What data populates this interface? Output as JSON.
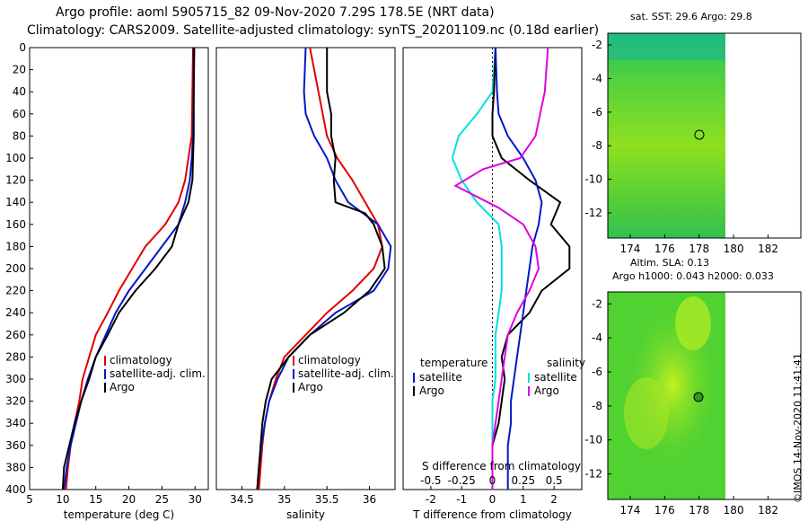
{
  "header": {
    "line1": "Argo profile: aoml 5905715_82 09-Nov-2020 7.29S 178.5E (NRT data)",
    "line2": "Climatology: CARS2009. Satellite-adjusted climatology: synTS_20201109.nc (0.18d earlier)"
  },
  "map_top": {
    "title": "sat. SST: 29.6 Argo: 29.8",
    "xticks": [
      "174",
      "176",
      "178",
      "180",
      "182"
    ],
    "yticks": [
      "-2",
      "-4",
      "-6",
      "-8",
      "-10",
      "-12"
    ]
  },
  "map_bottom": {
    "title1": "Altim. SLA: 0.13",
    "title2": "Argo h1000: 0.043 h2000: 0.033",
    "xticks": [
      "174",
      "176",
      "178",
      "180",
      "182"
    ],
    "yticks": [
      "-2",
      "-4",
      "-6",
      "-8",
      "-10",
      "-12"
    ]
  },
  "credit": "©IMOS 14-Nov-2020 11:41:41",
  "colors": {
    "climatology": "#e00000",
    "satellite": "#0018c8",
    "argo": "#000000",
    "temp_diff": "#00e0e0",
    "sal_diff": "#e000e0"
  },
  "chart_data": [
    {
      "type": "line",
      "xlabel": "temperature (deg C)",
      "ylabel": "",
      "xlim": [
        5,
        32
      ],
      "ylim": [
        400,
        0
      ],
      "xticks": [
        "5",
        "10",
        "15",
        "20",
        "25",
        "30"
      ],
      "xtick_values": [
        5,
        10,
        15,
        20,
        25,
        30
      ],
      "yticks": [
        "0",
        "20",
        "40",
        "60",
        "80",
        "100",
        "120",
        "140",
        "160",
        "180",
        "200",
        "220",
        "240",
        "260",
        "280",
        "300",
        "320",
        "340",
        "360",
        "380",
        "400"
      ],
      "ytick_values": [
        0,
        20,
        40,
        60,
        80,
        100,
        120,
        140,
        160,
        180,
        200,
        220,
        240,
        260,
        280,
        300,
        320,
        340,
        360,
        380,
        400
      ],
      "legend": [
        "climatology",
        "satellite-adj. clim.",
        "Argo"
      ],
      "series": [
        {
          "name": "climatology",
          "color": "#e00000",
          "points": [
            [
              29.7,
              0
            ],
            [
              29.6,
              40
            ],
            [
              29.5,
              80
            ],
            [
              29.0,
              100
            ],
            [
              28.5,
              120
            ],
            [
              27.5,
              140
            ],
            [
              25.5,
              160
            ],
            [
              22.5,
              180
            ],
            [
              20.5,
              200
            ],
            [
              18.5,
              220
            ],
            [
              16.8,
              240
            ],
            [
              15.0,
              260
            ],
            [
              14.0,
              280
            ],
            [
              13.0,
              300
            ],
            [
              12.5,
              320
            ],
            [
              11.8,
              340
            ],
            [
              11.2,
              360
            ],
            [
              10.8,
              380
            ],
            [
              10.5,
              400
            ]
          ]
        },
        {
          "name": "satellite-adj. clim.",
          "color": "#0018c8",
          "points": [
            [
              29.9,
              0
            ],
            [
              29.8,
              40
            ],
            [
              29.7,
              80
            ],
            [
              29.5,
              100
            ],
            [
              29.2,
              120
            ],
            [
              28.5,
              140
            ],
            [
              27.5,
              160
            ],
            [
              25.0,
              180
            ],
            [
              22.5,
              200
            ],
            [
              20.0,
              220
            ],
            [
              18.0,
              240
            ],
            [
              16.5,
              260
            ],
            [
              15.0,
              280
            ],
            [
              13.8,
              300
            ],
            [
              12.8,
              320
            ],
            [
              12.0,
              340
            ],
            [
              11.2,
              360
            ],
            [
              10.6,
              380
            ],
            [
              10.2,
              400
            ]
          ]
        },
        {
          "name": "Argo",
          "color": "#000000",
          "points": [
            [
              29.8,
              0
            ],
            [
              29.8,
              40
            ],
            [
              29.8,
              80
            ],
            [
              29.7,
              100
            ],
            [
              29.6,
              120
            ],
            [
              29.0,
              140
            ],
            [
              27.5,
              160
            ],
            [
              26.5,
              180
            ],
            [
              24.0,
              200
            ],
            [
              21.0,
              220
            ],
            [
              18.5,
              240
            ],
            [
              16.8,
              260
            ],
            [
              15.0,
              280
            ],
            [
              14.0,
              300
            ],
            [
              12.8,
              320
            ],
            [
              11.8,
              340
            ],
            [
              11.0,
              360
            ],
            [
              10.2,
              380
            ],
            [
              10.0,
              400
            ]
          ]
        }
      ]
    },
    {
      "type": "line",
      "xlabel": "salinity",
      "xlim": [
        34.2,
        36.3
      ],
      "ylim": [
        400,
        0
      ],
      "xticks": [
        "34.5",
        "35",
        "35.5",
        "36"
      ],
      "xtick_values": [
        34.5,
        35,
        35.5,
        36
      ],
      "legend": [
        "climatology",
        "satellite-adj. clim.",
        "Argo"
      ],
      "series": [
        {
          "name": "climatology",
          "color": "#e00000",
          "points": [
            [
              35.3,
              0
            ],
            [
              35.4,
              40
            ],
            [
              35.5,
              80
            ],
            [
              35.62,
              100
            ],
            [
              35.8,
              120
            ],
            [
              35.95,
              140
            ],
            [
              36.1,
              160
            ],
            [
              36.15,
              180
            ],
            [
              36.05,
              200
            ],
            [
              35.8,
              220
            ],
            [
              35.5,
              240
            ],
            [
              35.25,
              260
            ],
            [
              35.0,
              280
            ],
            [
              34.9,
              300
            ],
            [
              34.82,
              320
            ],
            [
              34.77,
              340
            ],
            [
              34.74,
              360
            ],
            [
              34.72,
              380
            ],
            [
              34.7,
              400
            ]
          ]
        },
        {
          "name": "satellite-adj. clim.",
          "color": "#0018c8",
          "points": [
            [
              35.25,
              0
            ],
            [
              35.23,
              40
            ],
            [
              35.25,
              60
            ],
            [
              35.35,
              80
            ],
            [
              35.5,
              100
            ],
            [
              35.6,
              120
            ],
            [
              35.75,
              140
            ],
            [
              36.1,
              160
            ],
            [
              36.25,
              180
            ],
            [
              36.22,
              200
            ],
            [
              36.05,
              220
            ],
            [
              35.6,
              240
            ],
            [
              35.3,
              260
            ],
            [
              35.05,
              280
            ],
            [
              34.92,
              300
            ],
            [
              34.82,
              320
            ],
            [
              34.77,
              340
            ],
            [
              34.73,
              360
            ],
            [
              34.7,
              380
            ],
            [
              34.68,
              400
            ]
          ]
        },
        {
          "name": "Argo",
          "color": "#000000",
          "points": [
            [
              35.5,
              0
            ],
            [
              35.5,
              40
            ],
            [
              35.55,
              60
            ],
            [
              35.55,
              80
            ],
            [
              35.6,
              100
            ],
            [
              35.58,
              120
            ],
            [
              35.6,
              140
            ],
            [
              35.95,
              150
            ],
            [
              36.05,
              160
            ],
            [
              36.15,
              180
            ],
            [
              36.18,
              200
            ],
            [
              36.0,
              220
            ],
            [
              35.7,
              240
            ],
            [
              35.3,
              260
            ],
            [
              35.05,
              280
            ],
            [
              34.85,
              300
            ],
            [
              34.78,
              320
            ],
            [
              34.74,
              340
            ],
            [
              34.72,
              360
            ],
            [
              34.7,
              380
            ],
            [
              34.68,
              400
            ]
          ]
        }
      ]
    },
    {
      "type": "line",
      "xlabel": "T difference from climatology",
      "xlabel2": "S difference from climatology",
      "xlim": [
        -2.9,
        2.9
      ],
      "ylim": [
        400,
        0
      ],
      "xticks": [
        "-2",
        "-1",
        "0",
        "1",
        "2"
      ],
      "xtick_values": [
        -2,
        -1,
        0,
        1,
        2
      ],
      "xticks_s": [
        "-0.5",
        "-0.25",
        "0",
        "0.25",
        "0.5"
      ],
      "legend_left_title": "temperature",
      "legend_right_title": "salinity",
      "legend_left": [
        "satellite",
        "Argo"
      ],
      "legend_right": [
        "satellite",
        "Argo"
      ],
      "series": [
        {
          "name": "temperature satellite",
          "color": "#00e0e0",
          "points": [
            [
              0.1,
              0
            ],
            [
              0,
              40
            ],
            [
              -0.5,
              60
            ],
            [
              -1.1,
              80
            ],
            [
              -1.3,
              100
            ],
            [
              -1.0,
              120
            ],
            [
              -0.5,
              140
            ],
            [
              0.2,
              160
            ],
            [
              0.3,
              180
            ],
            [
              0.3,
              200
            ],
            [
              0.3,
              220
            ],
            [
              0.2,
              240
            ],
            [
              0.1,
              260
            ],
            [
              0.1,
              280
            ],
            [
              0.1,
              300
            ],
            [
              0,
              320
            ],
            [
              0,
              340
            ],
            [
              0,
              360
            ],
            [
              0,
              380
            ],
            [
              0,
              400
            ]
          ]
        },
        {
          "name": "temperature Argo",
          "color": "#000000",
          "points": [
            [
              0.1,
              0
            ],
            [
              0.05,
              40
            ],
            [
              0,
              60
            ],
            [
              0,
              80
            ],
            [
              0.3,
              100
            ],
            [
              1.2,
              120
            ],
            [
              2.2,
              140
            ],
            [
              1.9,
              160
            ],
            [
              2.5,
              180
            ],
            [
              2.5,
              200
            ],
            [
              1.6,
              220
            ],
            [
              1.2,
              240
            ],
            [
              0.5,
              260
            ],
            [
              0.3,
              280
            ],
            [
              0.4,
              300
            ],
            [
              0.3,
              320
            ],
            [
              0.2,
              340
            ],
            [
              0,
              360
            ],
            [
              0,
              380
            ],
            [
              0,
              400
            ]
          ]
        },
        {
          "name": "salinity satellite",
          "color": "#0018c8",
          "points": [
            [
              0.1,
              0
            ],
            [
              0.15,
              40
            ],
            [
              0.2,
              60
            ],
            [
              0.5,
              80
            ],
            [
              1.0,
              100
            ],
            [
              1.4,
              120
            ],
            [
              1.6,
              140
            ],
            [
              1.5,
              160
            ],
            [
              1.3,
              180
            ],
            [
              1.2,
              200
            ],
            [
              1.1,
              220
            ],
            [
              1.0,
              240
            ],
            [
              0.9,
              260
            ],
            [
              0.8,
              280
            ],
            [
              0.7,
              300
            ],
            [
              0.6,
              320
            ],
            [
              0.6,
              340
            ],
            [
              0.5,
              360
            ],
            [
              0.5,
              380
            ],
            [
              0.5,
              400
            ]
          ]
        },
        {
          "name": "salinity Argo",
          "color": "#e000e0",
          "points": [
            [
              1.8,
              0
            ],
            [
              1.7,
              40
            ],
            [
              1.4,
              80
            ],
            [
              0.9,
              100
            ],
            [
              -0.3,
              110
            ],
            [
              -1.2,
              125
            ],
            [
              0.2,
              145
            ],
            [
              1.0,
              160
            ],
            [
              1.4,
              180
            ],
            [
              1.5,
              200
            ],
            [
              1.2,
              220
            ],
            [
              0.8,
              240
            ],
            [
              0.5,
              260
            ],
            [
              0.4,
              280
            ],
            [
              0.3,
              300
            ],
            [
              0.2,
              320
            ],
            [
              0.1,
              340
            ],
            [
              0,
              360
            ],
            [
              0,
              380
            ],
            [
              0,
              400
            ]
          ]
        }
      ]
    }
  ]
}
